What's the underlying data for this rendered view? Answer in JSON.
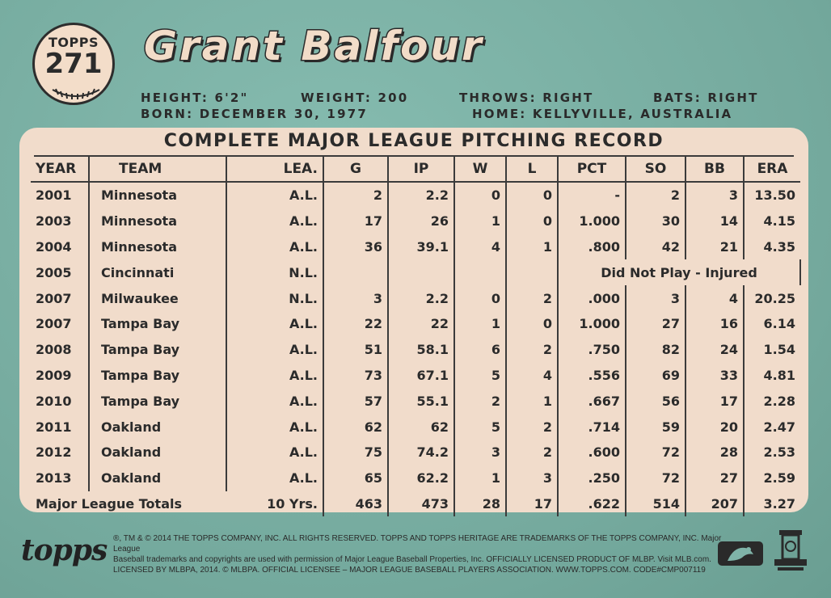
{
  "card": {
    "brand": "TOPPS",
    "number": "271",
    "player_name": "Grant Balfour",
    "bio": {
      "height": "HEIGHT: 6'2\"",
      "weight": "WEIGHT: 200",
      "throws": "THROWS: RIGHT",
      "bats": "BATS: RIGHT",
      "born": "BORN: DECEMBER 30, 1977",
      "home": "HOME: KELLYVILLE, AUSTRALIA"
    }
  },
  "stats": {
    "title": "COMPLETE MAJOR LEAGUE PITCHING RECORD",
    "headers": [
      "YEAR",
      "TEAM",
      "LEA.",
      "G",
      "IP",
      "W",
      "L",
      "PCT",
      "SO",
      "BB",
      "ERA"
    ],
    "rows": [
      [
        "2001",
        "Minnesota",
        "A.L.",
        "2",
        "2.2",
        "0",
        "0",
        "-",
        "2",
        "3",
        "13.50"
      ],
      [
        "2003",
        "Minnesota",
        "A.L.",
        "17",
        "26",
        "1",
        "0",
        "1.000",
        "30",
        "14",
        "4.15"
      ],
      [
        "2004",
        "Minnesota",
        "A.L.",
        "36",
        "39.1",
        "4",
        "1",
        ".800",
        "42",
        "21",
        "4.35"
      ],
      [
        "2005",
        "Cincinnati",
        "N.L.",
        "",
        "",
        "",
        "",
        "",
        "",
        "",
        ""
      ],
      [
        "2007",
        "Milwaukee",
        "N.L.",
        "3",
        "2.2",
        "0",
        "2",
        ".000",
        "3",
        "4",
        "20.25"
      ],
      [
        "2007",
        "Tampa Bay",
        "A.L.",
        "22",
        "22",
        "1",
        "0",
        "1.000",
        "27",
        "16",
        "6.14"
      ],
      [
        "2008",
        "Tampa Bay",
        "A.L.",
        "51",
        "58.1",
        "6",
        "2",
        ".750",
        "82",
        "24",
        "1.54"
      ],
      [
        "2009",
        "Tampa Bay",
        "A.L.",
        "73",
        "67.1",
        "5",
        "4",
        ".556",
        "69",
        "33",
        "4.81"
      ],
      [
        "2010",
        "Tampa Bay",
        "A.L.",
        "57",
        "55.1",
        "2",
        "1",
        ".667",
        "56",
        "17",
        "2.28"
      ],
      [
        "2011",
        "Oakland",
        "A.L.",
        "62",
        "62",
        "5",
        "2",
        ".714",
        "59",
        "20",
        "2.47"
      ],
      [
        "2012",
        "Oakland",
        "A.L.",
        "75",
        "74.2",
        "3",
        "2",
        ".600",
        "72",
        "28",
        "2.53"
      ],
      [
        "2013",
        "Oakland",
        "A.L.",
        "65",
        "62.2",
        "1",
        "3",
        ".250",
        "72",
        "27",
        "2.59"
      ]
    ],
    "dnp_note": "Did Not Play - Injured",
    "totals": {
      "label": "Major League Totals",
      "years": "10 Yrs.",
      "values": [
        "463",
        "473",
        "28",
        "17",
        ".622",
        "514",
        "207",
        "3.27"
      ]
    }
  },
  "footer": {
    "logo": "topps",
    "legal_1": "®, TM & © 2014 THE TOPPS COMPANY, INC. ALL RIGHTS RESERVED. TOPPS AND TOPPS HERITAGE ARE TRADEMARKS OF THE TOPPS COMPANY, INC. Major League",
    "legal_2": "Baseball trademarks and copyrights are used with permission of Major League Baseball Properties, Inc. OFFICIALLY LICENSED PRODUCT OF MLBP. Visit MLB.com.",
    "legal_3": "LICENSED BY MLBPA, 2014. © MLBPA. OFFICIAL LICENSEE – MAJOR LEAGUE BASEBALL PLAYERS ASSOCIATION. WWW.TOPPS.COM. CODE#CMP007119",
    "icons": [
      "mlb-logo-icon",
      "hall-of-fame-logo-icon"
    ]
  }
}
